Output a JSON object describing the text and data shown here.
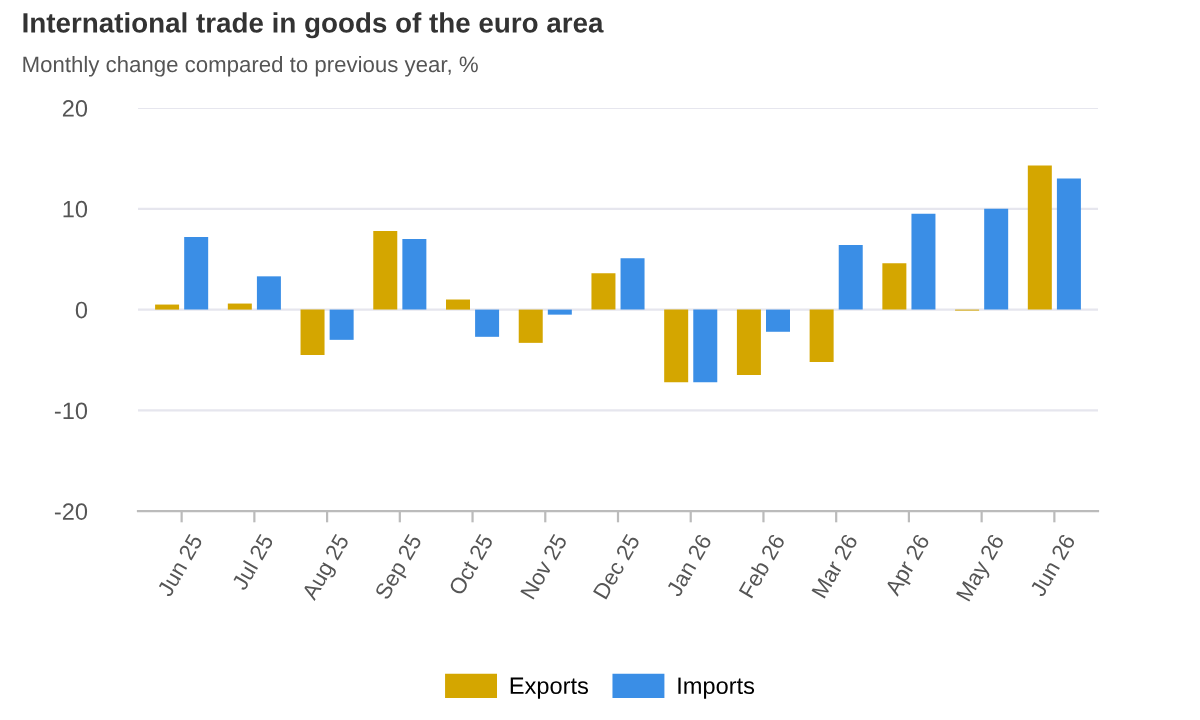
{
  "chart_data": {
    "type": "bar",
    "title": "International trade in goods of the euro area",
    "subtitle": "Monthly change compared to previous year, %",
    "categories": [
      "Jun 25",
      "Jul 25",
      "Aug 25",
      "Sep 25",
      "Oct 25",
      "Nov 25",
      "Dec 25",
      "Jan 26",
      "Feb 26",
      "Mar 26",
      "Apr 26",
      "May 26",
      "Jun 26"
    ],
    "series": [
      {
        "name": "Exports",
        "color": "#d4a600",
        "values": [
          0.5,
          0.6,
          -4.5,
          7.8,
          1.0,
          -3.3,
          3.6,
          -7.2,
          -6.5,
          -5.2,
          4.6,
          -0.1,
          14.3
        ]
      },
      {
        "name": "Imports",
        "color": "#3a8ee6",
        "values": [
          7.2,
          3.3,
          -3.0,
          7.0,
          -2.7,
          -0.5,
          5.1,
          -7.2,
          -2.2,
          6.4,
          9.5,
          10.0,
          13.0
        ]
      }
    ],
    "ylim": [
      -20,
      20
    ],
    "yticks": [
      -20,
      -10,
      0,
      10,
      20
    ],
    "grid": "y",
    "legend": "bottom"
  }
}
